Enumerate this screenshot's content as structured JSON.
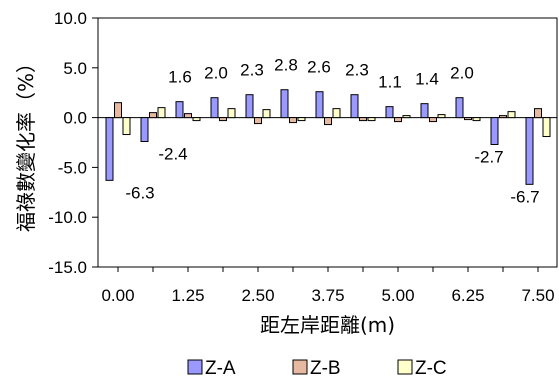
{
  "chart_data": {
    "type": "bar",
    "ylabel": "福祿數變化率（%）",
    "xlabel": "距左岸距離(m)",
    "ylim": [
      -15.0,
      10.0
    ],
    "yticks": [
      "10.0",
      "5.0",
      "0.0",
      "-5.0",
      "-10.0",
      "-15.0"
    ],
    "ytick_values": [
      10,
      5,
      0,
      -5,
      -10,
      -15
    ],
    "categories": [
      0.0,
      0.625,
      1.25,
      1.875,
      2.5,
      3.125,
      3.75,
      4.375,
      5.0,
      5.625,
      6.25,
      6.875,
      7.5
    ],
    "xtick_labels": [
      "0.00",
      "",
      "1.25",
      "",
      "2.50",
      "",
      "3.75",
      "",
      "5.00",
      "",
      "6.25",
      "",
      "7.50"
    ],
    "series": [
      {
        "name": "Z-A",
        "color": "#9999ff",
        "values": [
          -6.3,
          -2.4,
          1.6,
          2.0,
          2.3,
          2.8,
          2.6,
          2.3,
          1.1,
          1.4,
          2.0,
          -2.7,
          -6.7
        ]
      },
      {
        "name": "Z-B",
        "color": "#e6b9a0",
        "values": [
          1.5,
          0.5,
          0.4,
          -0.3,
          -0.6,
          -0.5,
          -0.7,
          -0.3,
          -0.4,
          -0.4,
          -0.2,
          0.2,
          0.9
        ]
      },
      {
        "name": "Z-C",
        "color": "#ffffcc",
        "values": [
          -1.7,
          1.0,
          -0.3,
          0.9,
          0.8,
          -0.3,
          0.9,
          -0.3,
          0.2,
          0.3,
          -0.3,
          0.6,
          -1.9
        ]
      }
    ],
    "data_labels": [
      "-6.3",
      "-2.4",
      "1.6",
      "2.0",
      "2.3",
      "2.8",
      "2.6",
      "2.3",
      "1.1",
      "1.4",
      "2.0",
      "-2.7",
      "-6.7"
    ],
    "legend": {
      "position": "bottom",
      "entries": [
        "Z-A",
        "Z-B",
        "Z-C"
      ]
    },
    "grid": false
  }
}
